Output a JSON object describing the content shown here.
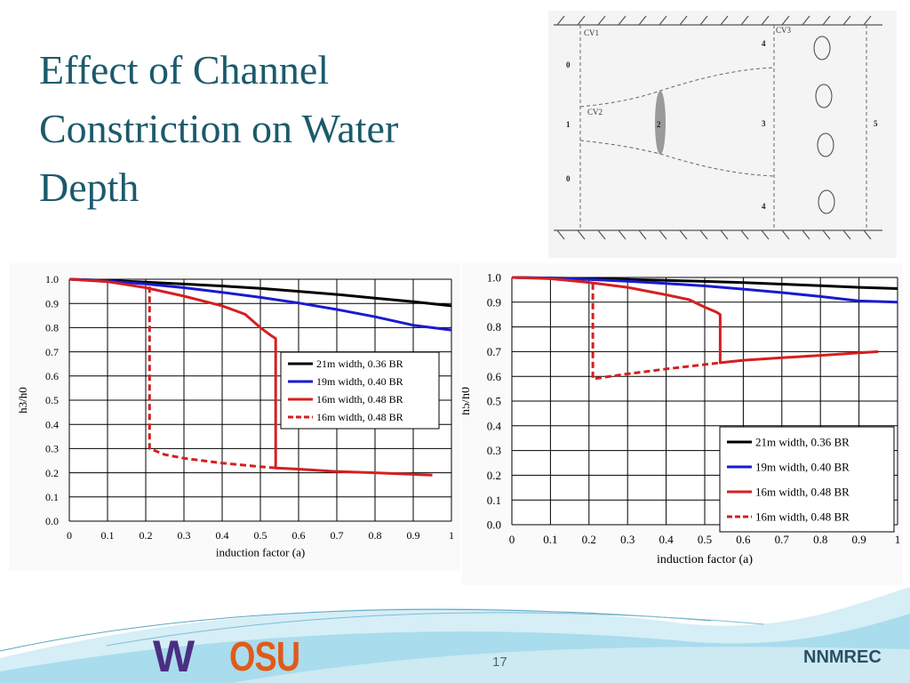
{
  "slide": {
    "title_lines": [
      "Effect of Channel",
      "Constriction on Water",
      "Depth"
    ],
    "page_number": "17",
    "organization": "NNMREC",
    "logo_left": "W",
    "logo_right": "OSU"
  },
  "diagram": {
    "labels": {
      "cv1": "CV1",
      "cv2": "CV2",
      "cv3": "CV3",
      "s0_top": "0",
      "s1": "1",
      "s0_bottom": "0",
      "s2": "2",
      "s4_top": "4",
      "s3": "3",
      "s4_bottom": "4",
      "s5": "5"
    }
  },
  "chart_data": [
    {
      "type": "line",
      "xlabel": "induction factor (a)",
      "ylabel": "h3/h0",
      "xlim": [
        0,
        1
      ],
      "ylim": [
        0,
        1
      ],
      "xticks": [
        "0",
        "0.1",
        "0.2",
        "0.3",
        "0.4",
        "0.5",
        "0.6",
        "0.7",
        "0.8",
        "0.9",
        "1"
      ],
      "yticks": [
        "0.0",
        "0.1",
        "0.2",
        "0.3",
        "0.4",
        "0.5",
        "0.6",
        "0.7",
        "0.8",
        "0.9",
        "1.0"
      ],
      "grid": true,
      "legend_position": "center-right",
      "series": [
        {
          "name": "21m width, 0.36 BR",
          "color": "#000000",
          "dash": false,
          "x": [
            0,
            0.1,
            0.2,
            0.3,
            0.4,
            0.5,
            0.6,
            0.7,
            0.8,
            0.9,
            1.0
          ],
          "y": [
            1.0,
            0.995,
            0.988,
            0.98,
            0.972,
            0.962,
            0.95,
            0.937,
            0.922,
            0.907,
            0.89
          ]
        },
        {
          "name": "19m width, 0.40 BR",
          "color": "#1a1ad0",
          "dash": false,
          "x": [
            0,
            0.1,
            0.2,
            0.3,
            0.4,
            0.5,
            0.6,
            0.7,
            0.8,
            0.9,
            1.0
          ],
          "y": [
            1.0,
            0.993,
            0.981,
            0.965,
            0.946,
            0.925,
            0.902,
            0.875,
            0.845,
            0.81,
            0.79
          ]
        },
        {
          "name": "16m width, 0.48 BR",
          "color": "#d42020",
          "dash": false,
          "x": [
            0,
            0.1,
            0.2,
            0.3,
            0.4,
            0.46,
            0.5,
            0.53,
            0.54,
            0.54,
            0.6,
            0.7,
            0.8,
            0.95
          ],
          "y": [
            1.0,
            0.99,
            0.965,
            0.93,
            0.89,
            0.855,
            0.8,
            0.765,
            0.755,
            0.22,
            0.215,
            0.205,
            0.2,
            0.19
          ]
        },
        {
          "name": "16m width, 0.48 BR",
          "color": "#d42020",
          "dash": true,
          "x": [
            0.21,
            0.21,
            0.25,
            0.3,
            0.4,
            0.5,
            0.54
          ],
          "y": [
            0.97,
            0.3,
            0.275,
            0.26,
            0.24,
            0.225,
            0.22
          ]
        }
      ]
    },
    {
      "type": "line",
      "xlabel": "induction factor (a)",
      "ylabel": "h5/h0",
      "xlim": [
        0,
        1
      ],
      "ylim": [
        0,
        1
      ],
      "xticks": [
        "0",
        "0.1",
        "0.2",
        "0.3",
        "0.4",
        "0.5",
        "0.6",
        "0.7",
        "0.8",
        "0.9",
        "1"
      ],
      "yticks": [
        "0.0",
        "0.1",
        "0.2",
        "0.3",
        "0.4",
        "0.5",
        "0.6",
        "0.7",
        "0.8",
        "0.9",
        "1.0"
      ],
      "grid": true,
      "legend_position": "bottom-right",
      "series": [
        {
          "name": "21m width, 0.36 BR",
          "color": "#000000",
          "dash": false,
          "x": [
            0,
            0.1,
            0.2,
            0.3,
            0.4,
            0.5,
            0.6,
            0.7,
            0.8,
            0.9,
            1.0
          ],
          "y": [
            1.0,
            0.998,
            0.995,
            0.992,
            0.988,
            0.984,
            0.979,
            0.973,
            0.967,
            0.96,
            0.955
          ]
        },
        {
          "name": "19m width, 0.40 BR",
          "color": "#1a1ad0",
          "dash": false,
          "x": [
            0,
            0.1,
            0.2,
            0.3,
            0.4,
            0.5,
            0.6,
            0.7,
            0.8,
            0.9,
            1.0
          ],
          "y": [
            1.0,
            0.997,
            0.992,
            0.985,
            0.976,
            0.966,
            0.953,
            0.939,
            0.923,
            0.905,
            0.9
          ]
        },
        {
          "name": "16m width, 0.48 BR",
          "color": "#d42020",
          "dash": false,
          "x": [
            0,
            0.1,
            0.2,
            0.3,
            0.4,
            0.46,
            0.5,
            0.53,
            0.54,
            0.54,
            0.6,
            0.7,
            0.8,
            0.95
          ],
          "y": [
            1.0,
            0.995,
            0.98,
            0.96,
            0.93,
            0.91,
            0.88,
            0.86,
            0.85,
            0.655,
            0.665,
            0.675,
            0.685,
            0.7
          ]
        },
        {
          "name": "16m width, 0.48 BR",
          "color": "#d42020",
          "dash": true,
          "x": [
            0.21,
            0.21,
            0.3,
            0.4,
            0.5,
            0.54
          ],
          "y": [
            0.975,
            0.59,
            0.61,
            0.63,
            0.648,
            0.655
          ]
        }
      ]
    }
  ]
}
